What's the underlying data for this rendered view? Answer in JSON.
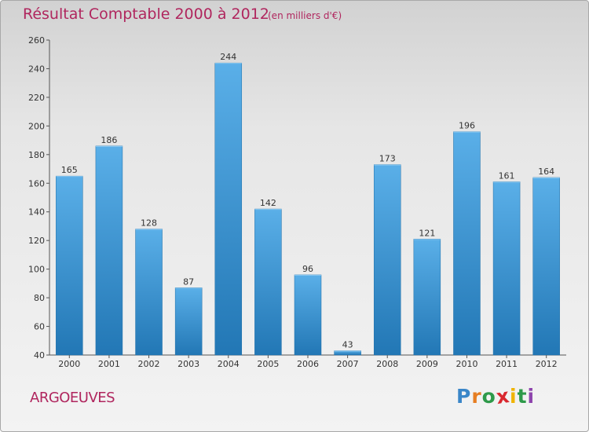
{
  "chart_data": {
    "type": "bar",
    "title": "Résultat Comptable 2000 à 2012",
    "subtitle": "(en milliers d'€)",
    "categories": [
      "2000",
      "2001",
      "2002",
      "2003",
      "2004",
      "2005",
      "2006",
      "2007",
      "2008",
      "2009",
      "2010",
      "2011",
      "2012"
    ],
    "values": [
      165,
      186,
      128,
      87,
      244,
      142,
      96,
      43,
      173,
      121,
      196,
      161,
      164
    ],
    "ylim": [
      40,
      260
    ],
    "yticks": [
      40,
      60,
      80,
      100,
      120,
      140,
      160,
      180,
      200,
      220,
      240,
      260
    ],
    "xlabel": "",
    "ylabel": "",
    "grid": false,
    "colors": {
      "bar_top": "#5aafe8",
      "bar_bottom": "#2277b5",
      "text": "#333333",
      "title": "#b0265e"
    }
  },
  "footer": {
    "commune": "ARGOEUVES",
    "brand_letters": [
      "P",
      "r",
      "o",
      "x",
      "i",
      "t",
      "i"
    ],
    "brand_colors": [
      "#3a86c8",
      "#e67e22",
      "#2e9a4a",
      "#d9282f",
      "#f0b400",
      "#2e9a4a",
      "#8e44ad"
    ]
  }
}
